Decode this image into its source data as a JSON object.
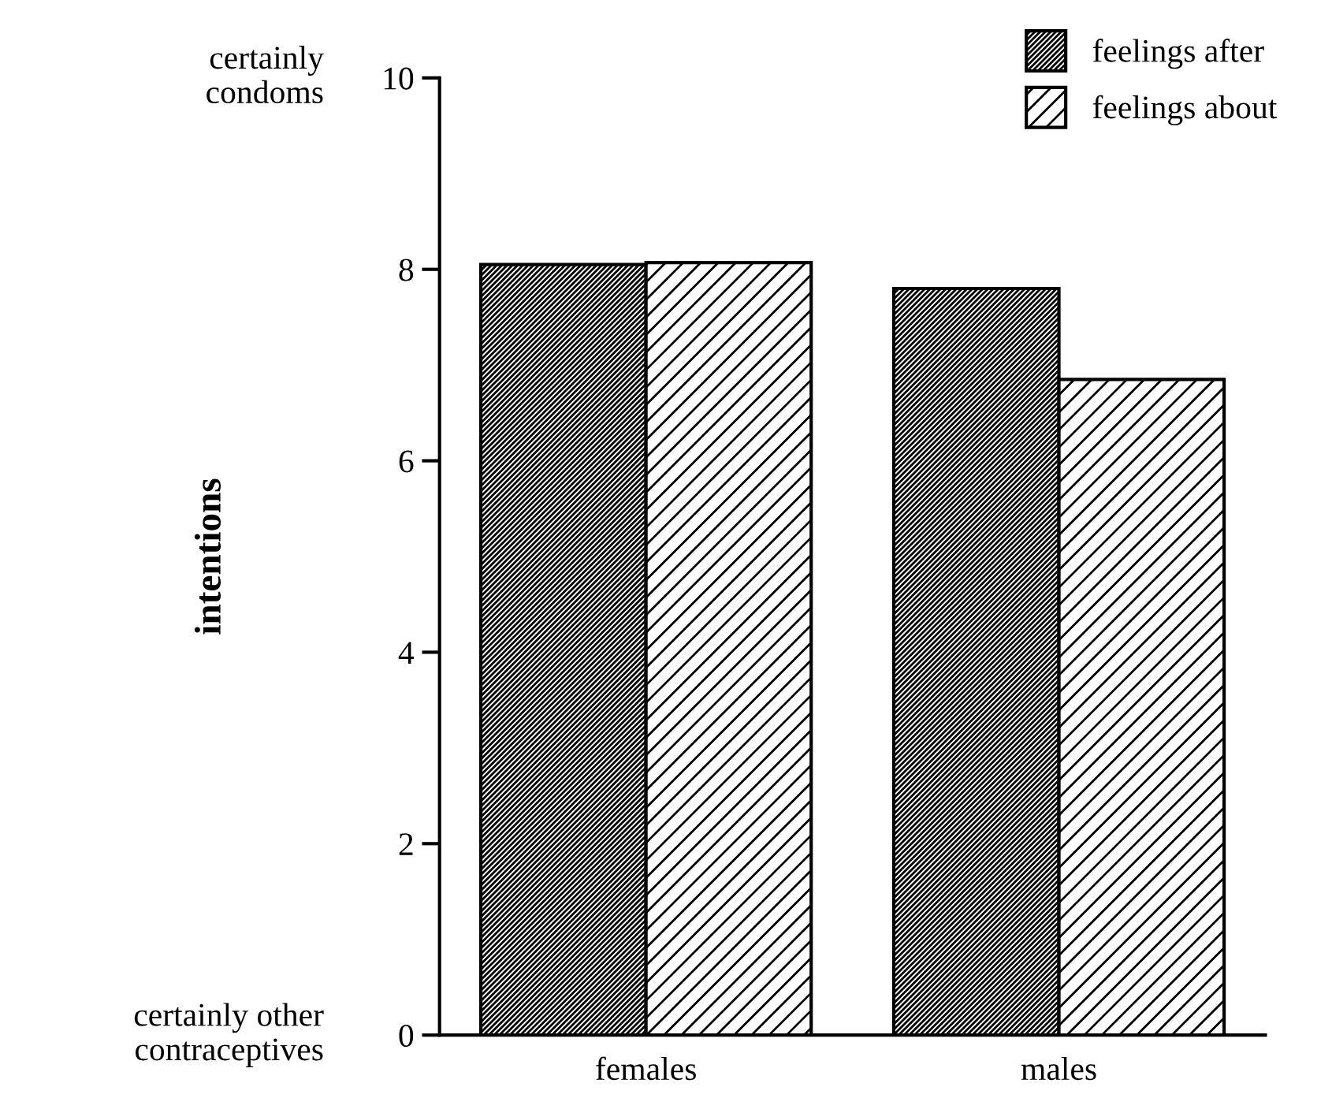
{
  "chart_data": {
    "type": "bar",
    "ylabel": "intentions",
    "categories": [
      "females",
      "males"
    ],
    "series": [
      {
        "name": "feelings after",
        "color": "#000000",
        "values": [
          8.05,
          7.8
        ]
      },
      {
        "name": "feelings about",
        "color": "#000000",
        "values": [
          8.07,
          6.85
        ]
      }
    ],
    "ylim": [
      0,
      10
    ],
    "yticks": [
      0,
      2,
      4,
      6,
      8,
      10
    ],
    "grid": false,
    "legend": "top right",
    "annotations": [
      "certainly\ncondoms",
      "certainly other\ncontraceptives"
    ]
  }
}
